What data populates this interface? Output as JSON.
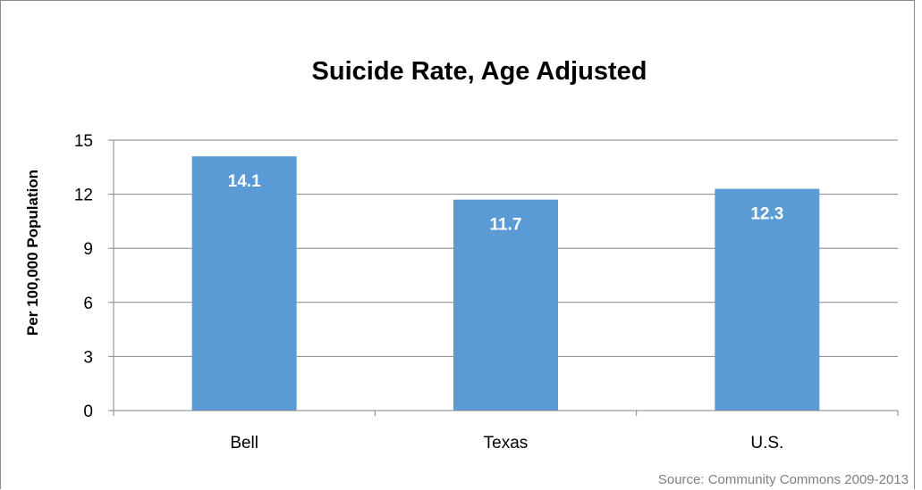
{
  "chart_data": {
    "type": "bar",
    "title": "Suicide Rate, Age Adjusted",
    "xlabel": "",
    "ylabel": "Per 100,000 Population",
    "categories": [
      "Bell",
      "Texas",
      "U.S."
    ],
    "values": [
      14.1,
      11.7,
      12.3
    ],
    "data_labels": [
      "14.1",
      "11.7",
      "12.3"
    ],
    "ylim": [
      0,
      15
    ],
    "yticks": [
      0,
      3,
      6,
      9,
      12,
      15
    ],
    "grid": true,
    "legend": "none",
    "bar_color": "#5b9bd5",
    "gridline_color": "#868686",
    "source": "Source: Community Commons 2009-2013"
  }
}
